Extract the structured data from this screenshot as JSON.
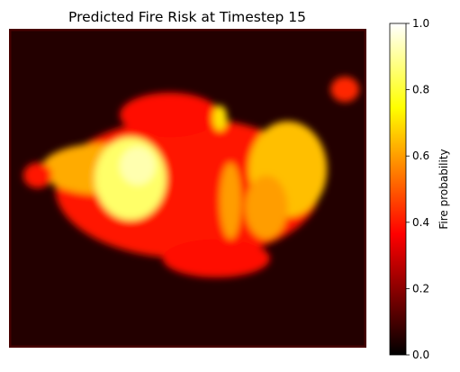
{
  "chart_data": {
    "type": "heatmap",
    "title": "Predicted Fire Risk at Timestep 15",
    "colormap": "hot",
    "axes_visible": false,
    "colorbar": {
      "label": "Fire probability",
      "range": [
        0.0,
        1.0
      ],
      "ticks": [
        "0.0",
        "0.2",
        "0.4",
        "0.6",
        "0.8",
        "1.0"
      ]
    },
    "background_value": 0.05,
    "border_value": 0.1,
    "blobs": [
      {
        "name": "main-burn-region",
        "cx": 0.5,
        "cy": 0.5,
        "rx": 0.37,
        "ry": 0.22,
        "value": 0.4
      },
      {
        "name": "upper-middle-arm",
        "cx": 0.45,
        "cy": 0.27,
        "rx": 0.14,
        "ry": 0.07,
        "value": 0.38
      },
      {
        "name": "left-plume",
        "cx": 0.26,
        "cy": 0.44,
        "rx": 0.17,
        "ry": 0.08,
        "value": 0.62
      },
      {
        "name": "left-core",
        "cx": 0.34,
        "cy": 0.47,
        "rx": 0.1,
        "ry": 0.13,
        "value": 0.85
      },
      {
        "name": "left-core-peak",
        "cx": 0.36,
        "cy": 0.43,
        "rx": 0.05,
        "ry": 0.06,
        "value": 0.92
      },
      {
        "name": "right-core",
        "cx": 0.78,
        "cy": 0.44,
        "rx": 0.11,
        "ry": 0.15,
        "value": 0.65
      },
      {
        "name": "right-core-extension",
        "cx": 0.72,
        "cy": 0.56,
        "rx": 0.06,
        "ry": 0.1,
        "value": 0.6
      },
      {
        "name": "center-strip",
        "cx": 0.62,
        "cy": 0.54,
        "rx": 0.03,
        "ry": 0.12,
        "value": 0.6
      },
      {
        "name": "far-left-spot",
        "cx": 0.08,
        "cy": 0.46,
        "rx": 0.04,
        "ry": 0.04,
        "value": 0.4
      },
      {
        "name": "top-right-spot",
        "cx": 0.94,
        "cy": 0.19,
        "rx": 0.04,
        "ry": 0.04,
        "value": 0.42
      },
      {
        "name": "small-center-spot",
        "cx": 0.59,
        "cy": 0.28,
        "rx": 0.02,
        "ry": 0.04,
        "value": 0.7
      },
      {
        "name": "lower-lobe",
        "cx": 0.58,
        "cy": 0.72,
        "rx": 0.15,
        "ry": 0.06,
        "value": 0.38
      }
    ]
  }
}
